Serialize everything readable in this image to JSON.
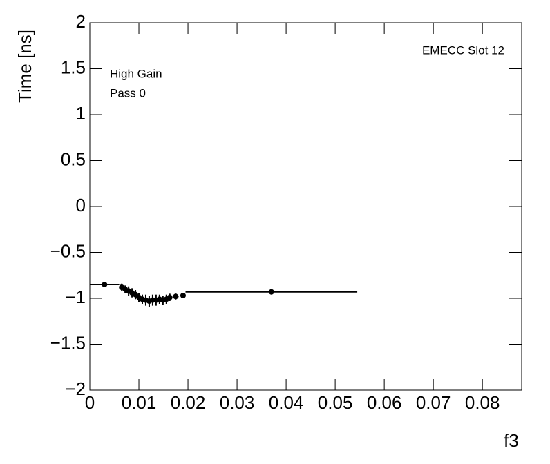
{
  "chart_data": {
    "type": "errorbar",
    "x_label": "f3",
    "y_label": "Time [ns]",
    "annotations": [
      "EMECC Slot 12",
      "High Gain",
      "Pass 0"
    ],
    "xlim": [
      0,
      0.088
    ],
    "ylim": [
      -2,
      2
    ],
    "xticks": [
      0,
      0.01,
      0.02,
      0.03,
      0.04,
      0.05,
      0.06,
      0.07,
      0.08
    ],
    "yticks": [
      {
        "value": -2,
        "label": "−2"
      },
      {
        "value": -1.5,
        "label": "−1.5"
      },
      {
        "value": -1,
        "label": "−1"
      },
      {
        "value": -0.5,
        "label": "−0.5"
      },
      0,
      0.5,
      1,
      1.5,
      2
    ],
    "color": "#000000",
    "x": [
      0.003,
      0.0065,
      0.0072,
      0.0079,
      0.0086,
      0.0093,
      0.01,
      0.0107,
      0.0114,
      0.0121,
      0.0128,
      0.0135,
      0.0142,
      0.0149,
      0.0156,
      0.0163,
      0.0175,
      0.019,
      0.037
    ],
    "values": [
      -0.85,
      -0.88,
      -0.9,
      -0.92,
      -0.94,
      -0.96,
      -0.99,
      -1.01,
      -1.02,
      -1.03,
      -1.02,
      -1.02,
      -1.01,
      -1.02,
      -1.01,
      -0.99,
      -0.98,
      -0.97,
      -0.93
    ],
    "x_errors": [
      0.003,
      0.00035,
      0.00035,
      0.00035,
      0.00035,
      0.00035,
      0.00035,
      0.00035,
      0.00035,
      0.00035,
      0.00035,
      0.00035,
      0.00035,
      0.00035,
      0.00035,
      0.00035,
      0.0006,
      0.0005,
      0.0175
    ],
    "y_errors": [
      0.02,
      0.04,
      0.04,
      0.05,
      0.05,
      0.05,
      0.05,
      0.05,
      0.06,
      0.06,
      0.06,
      0.06,
      0.05,
      0.05,
      0.05,
      0.04,
      0.04,
      0.03,
      0.02
    ]
  }
}
